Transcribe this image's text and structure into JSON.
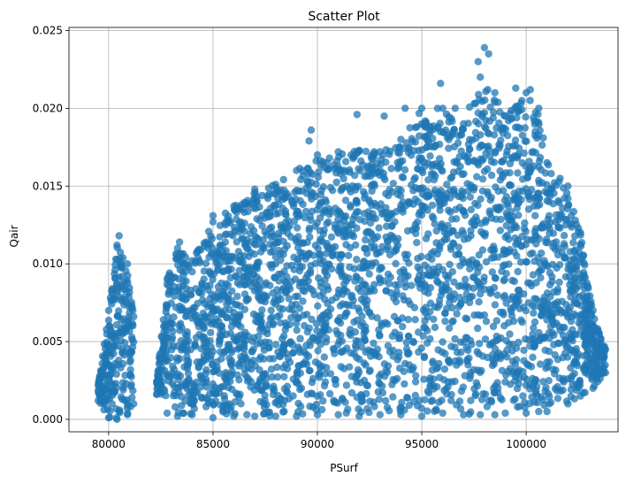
{
  "chart_data": {
    "type": "scatter",
    "title": "Scatter Plot",
    "xlabel": "PSurf",
    "ylabel": "Qair",
    "xlim": [
      78100,
      104400
    ],
    "ylim": [
      -0.0008,
      0.0252
    ],
    "xticks": [
      80000,
      85000,
      90000,
      95000,
      100000
    ],
    "xtick_labels": [
      "80000",
      "85000",
      "90000",
      "95000",
      "100000"
    ],
    "yticks": [
      0.0,
      0.005,
      0.01,
      0.015,
      0.02,
      0.025
    ],
    "ytick_labels": [
      "0.000",
      "0.005",
      "0.010",
      "0.015",
      "0.020",
      "0.025"
    ],
    "grid": true,
    "color": "#1f77b4",
    "envelope": [
      [
        79500,
        0.0012,
        0.0022
      ],
      [
        80000,
        0.0001,
        0.007
      ],
      [
        80400,
        0.0,
        0.0112
      ],
      [
        80900,
        0.0003,
        0.01
      ],
      [
        81200,
        0.001,
        0.0066
      ],
      [
        82300,
        0.0016,
        0.0024
      ],
      [
        82800,
        0.0004,
        0.009
      ],
      [
        83300,
        0.0002,
        0.011
      ],
      [
        84000,
        0.0003,
        0.0102
      ],
      [
        85000,
        0.0001,
        0.0127
      ],
      [
        86000,
        0.0002,
        0.0137
      ],
      [
        87000,
        0.0002,
        0.0148
      ],
      [
        88000,
        0.0002,
        0.0151
      ],
      [
        89000,
        0.0002,
        0.016
      ],
      [
        90000,
        0.0003,
        0.017
      ],
      [
        91000,
        0.0003,
        0.0172
      ],
      [
        92000,
        0.0002,
        0.0173
      ],
      [
        93000,
        0.0003,
        0.0172
      ],
      [
        94000,
        0.0003,
        0.018
      ],
      [
        95000,
        0.0002,
        0.02
      ],
      [
        96000,
        0.0004,
        0.02
      ],
      [
        97000,
        0.0003,
        0.019
      ],
      [
        97800,
        0.0003,
        0.022
      ],
      [
        98500,
        0.0003,
        0.021
      ],
      [
        99000,
        0.0004,
        0.0195
      ],
      [
        100000,
        0.0004,
        0.021
      ],
      [
        100600,
        0.0005,
        0.02
      ],
      [
        101000,
        0.0005,
        0.0165
      ],
      [
        102000,
        0.001,
        0.015
      ],
      [
        102600,
        0.0015,
        0.012
      ],
      [
        103200,
        0.002,
        0.007
      ],
      [
        103800,
        0.003,
        0.0045
      ]
    ],
    "outliers": [
      [
        80500,
        0.0118
      ],
      [
        83400,
        0.0114
      ],
      [
        85000,
        0.0131
      ],
      [
        89700,
        0.0186
      ],
      [
        89600,
        0.0179
      ],
      [
        91900,
        0.0196
      ],
      [
        93200,
        0.0195
      ],
      [
        94200,
        0.02
      ],
      [
        95900,
        0.0216
      ],
      [
        96600,
        0.02
      ],
      [
        97700,
        0.023
      ],
      [
        98000,
        0.0239
      ],
      [
        98200,
        0.0235
      ],
      [
        99500,
        0.0213
      ],
      [
        100200,
        0.0212
      ],
      [
        101200,
        0.0158
      ],
      [
        102000,
        0.0142
      ]
    ]
  }
}
